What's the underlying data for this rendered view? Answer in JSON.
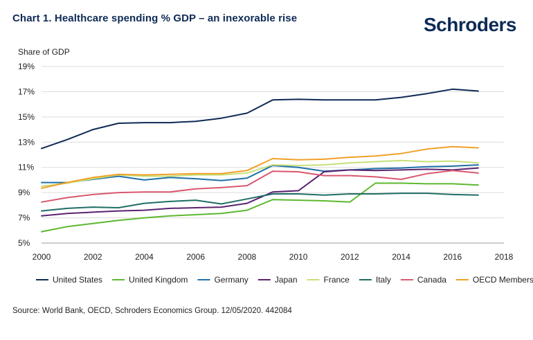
{
  "header": {
    "title": "Chart 1. Healthcare spending % GDP – an inexorable rise",
    "logo": "Schroders"
  },
  "footer": {
    "source": "Source: World Bank, OECD, Schroders Economics Group. 12/05/2020. 442084"
  },
  "chart_data": {
    "type": "line",
    "title": "Chart 1. Healthcare spending % GDP – an inexorable rise",
    "ylabel": "Share of GDP",
    "xlabel": "",
    "xlim": [
      2000,
      2018
    ],
    "ylim": [
      5,
      19
    ],
    "x_ticks": [
      2000,
      2002,
      2004,
      2006,
      2008,
      2010,
      2012,
      2014,
      2016,
      2018
    ],
    "y_ticks": [
      5,
      7,
      9,
      11,
      13,
      15,
      17,
      19
    ],
    "y_tick_labels": [
      "5%",
      "7%",
      "9%",
      "11%",
      "13%",
      "15%",
      "17%",
      "19%"
    ],
    "grid": "horizontal",
    "legend_position": "bottom",
    "x": [
      2000,
      2001,
      2002,
      2003,
      2004,
      2005,
      2006,
      2007,
      2008,
      2009,
      2010,
      2011,
      2012,
      2013,
      2014,
      2015,
      2016,
      2017
    ],
    "series": [
      {
        "name": "United States",
        "color": "#0e2a55",
        "values": [
          12.5,
          13.2,
          14.0,
          14.5,
          14.55,
          14.55,
          14.65,
          14.9,
          15.3,
          16.35,
          16.4,
          16.35,
          16.35,
          16.35,
          16.55,
          16.85,
          17.2,
          17.05
        ]
      },
      {
        "name": "United Kingdom",
        "color": "#5cb82e",
        "values": [
          5.9,
          6.3,
          6.55,
          6.8,
          7.0,
          7.15,
          7.25,
          7.35,
          7.6,
          8.45,
          8.4,
          8.35,
          8.25,
          9.75,
          9.75,
          9.7,
          9.7,
          9.6
        ]
      },
      {
        "name": "Germany",
        "color": "#1f6fa6",
        "values": [
          9.8,
          9.8,
          10.05,
          10.3,
          10.0,
          10.2,
          10.1,
          9.95,
          10.15,
          11.15,
          11.0,
          10.7,
          10.8,
          10.9,
          10.95,
          11.05,
          11.1,
          11.2
        ]
      },
      {
        "name": "Japan",
        "color": "#5b2270",
        "values": [
          7.15,
          7.35,
          7.45,
          7.55,
          7.6,
          7.75,
          7.8,
          7.85,
          8.15,
          9.05,
          9.15,
          10.65,
          10.8,
          10.75,
          10.8,
          10.85,
          10.8,
          10.95
        ]
      },
      {
        "name": "France",
        "color": "#c6e07a",
        "values": [
          9.5,
          9.75,
          10.1,
          10.4,
          10.3,
          10.3,
          10.4,
          10.4,
          10.55,
          11.2,
          11.15,
          11.2,
          11.35,
          11.45,
          11.55,
          11.45,
          11.5,
          11.35
        ]
      },
      {
        "name": "Italy",
        "color": "#1f6e64",
        "values": [
          7.55,
          7.75,
          7.85,
          7.8,
          8.15,
          8.3,
          8.4,
          8.1,
          8.5,
          8.9,
          8.9,
          8.8,
          8.9,
          8.9,
          8.95,
          8.95,
          8.85,
          8.8
        ]
      },
      {
        "name": "Canada",
        "color": "#d9576e",
        "values": [
          8.25,
          8.6,
          8.85,
          9.0,
          9.05,
          9.05,
          9.3,
          9.4,
          9.55,
          10.7,
          10.65,
          10.35,
          10.35,
          10.25,
          10.05,
          10.5,
          10.75,
          10.55
        ]
      },
      {
        "name": "OECD Members",
        "color": "#f0a028",
        "values": [
          9.35,
          9.8,
          10.2,
          10.45,
          10.4,
          10.45,
          10.5,
          10.5,
          10.75,
          11.7,
          11.6,
          11.65,
          11.8,
          11.9,
          12.1,
          12.45,
          12.65,
          12.55
        ]
      }
    ]
  }
}
